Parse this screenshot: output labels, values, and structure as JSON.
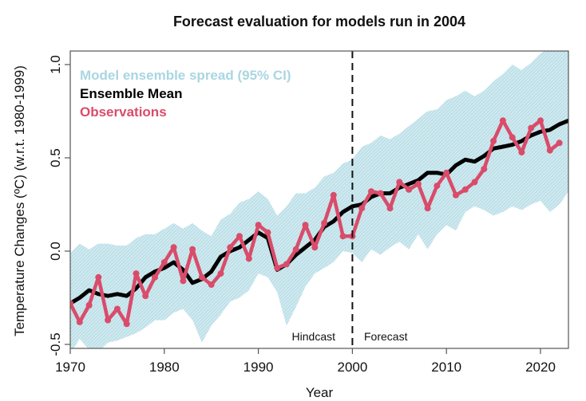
{
  "chart_data": {
    "type": "line",
    "title": "Forecast evaluation for models run in 2004",
    "xlabel": "Year",
    "ylabel": "Temperature Changes (ºC) (w.r.t. 1980-1999)",
    "xlim": [
      1970,
      2023
    ],
    "ylim": [
      -0.52,
      1.07
    ],
    "xticks": [
      1970,
      1980,
      1990,
      2000,
      2010,
      2020
    ],
    "xtick_labels": [
      "1970",
      "1980",
      "1990",
      "2000",
      "2010",
      "2020"
    ],
    "yticks": [
      -0.5,
      0.0,
      0.5,
      1.0
    ],
    "ytick_labels": [
      "-0.5",
      "0.0",
      "0.5",
      "1.0"
    ],
    "grid": false,
    "legend": {
      "placement": "top-left",
      "entries": [
        {
          "label": "Model ensemble spread (95% CI)",
          "color": "#a9d6e2"
        },
        {
          "label": "Ensemble Mean",
          "color": "#000000"
        },
        {
          "label": "Observations",
          "color": "#d94c6a"
        }
      ]
    },
    "annotations": {
      "divider_year": 2000,
      "left_label": "Hindcast",
      "right_label": "Forecast"
    },
    "colors": {
      "band_fill": "#cfe9ef",
      "band_hatch": "#9fcfdc",
      "mean": "#000000",
      "observations": "#d94c6a"
    },
    "band": {
      "name": "Model ensemble spread (95% CI)",
      "x": [
        1970,
        1971,
        1972,
        1973,
        1974,
        1975,
        1976,
        1977,
        1978,
        1979,
        1980,
        1981,
        1982,
        1983,
        1984,
        1985,
        1986,
        1987,
        1988,
        1989,
        1990,
        1991,
        1992,
        1993,
        1994,
        1995,
        1996,
        1997,
        1998,
        1999,
        2000,
        2001,
        2002,
        2003,
        2004,
        2005,
        2006,
        2007,
        2008,
        2009,
        2010,
        2011,
        2012,
        2013,
        2014,
        2015,
        2016,
        2017,
        2018,
        2019,
        2020,
        2021,
        2022,
        2023
      ],
      "upper": [
        -0.01,
        0.04,
        0.01,
        0.04,
        0.04,
        0.03,
        0.03,
        0.07,
        0.09,
        0.09,
        0.12,
        0.15,
        0.12,
        0.15,
        0.11,
        0.08,
        0.17,
        0.2,
        0.26,
        0.28,
        0.32,
        0.28,
        0.19,
        0.24,
        0.31,
        0.31,
        0.34,
        0.4,
        0.42,
        0.47,
        0.49,
        0.56,
        0.58,
        0.62,
        0.6,
        0.63,
        0.67,
        0.71,
        0.75,
        0.76,
        0.81,
        0.83,
        0.86,
        0.83,
        0.86,
        0.91,
        0.95,
        1.0,
        0.97,
        1.01,
        1.06,
        1.09,
        1.1,
        1.12
      ],
      "lower": [
        -0.55,
        -0.47,
        -0.53,
        -0.54,
        -0.49,
        -0.48,
        -0.46,
        -0.44,
        -0.41,
        -0.37,
        -0.37,
        -0.33,
        -0.31,
        -0.37,
        -0.49,
        -0.4,
        -0.34,
        -0.27,
        -0.25,
        -0.21,
        -0.12,
        -0.14,
        -0.22,
        -0.4,
        -0.3,
        -0.19,
        -0.12,
        -0.09,
        -0.06,
        0.0,
        -0.01,
        -0.06,
        0.01,
        -0.02,
        0.02,
        0.05,
        0.01,
        0.09,
        0.01,
        0.09,
        0.14,
        0.11,
        0.21,
        0.24,
        0.22,
        0.19,
        0.21,
        0.24,
        0.22,
        0.25,
        0.27,
        0.21,
        0.25,
        0.32
      ]
    },
    "series": [
      {
        "name": "Ensemble Mean",
        "x": [
          1970,
          1971,
          1972,
          1973,
          1974,
          1975,
          1976,
          1977,
          1978,
          1979,
          1980,
          1981,
          1982,
          1983,
          1984,
          1985,
          1986,
          1987,
          1988,
          1989,
          1990,
          1991,
          1992,
          1993,
          1994,
          1995,
          1996,
          1997,
          1998,
          1999,
          2000,
          2001,
          2002,
          2003,
          2004,
          2005,
          2006,
          2007,
          2008,
          2009,
          2010,
          2011,
          2012,
          2013,
          2014,
          2015,
          2016,
          2017,
          2018,
          2019,
          2020,
          2021,
          2022,
          2023
        ],
        "values": [
          -0.28,
          -0.25,
          -0.21,
          -0.23,
          -0.24,
          -0.23,
          -0.24,
          -0.2,
          -0.14,
          -0.11,
          -0.09,
          -0.06,
          -0.1,
          -0.17,
          -0.15,
          -0.11,
          -0.03,
          0.0,
          0.02,
          0.06,
          0.1,
          0.07,
          -0.1,
          -0.07,
          -0.02,
          0.02,
          0.06,
          0.13,
          0.16,
          0.21,
          0.24,
          0.25,
          0.29,
          0.31,
          0.31,
          0.34,
          0.36,
          0.38,
          0.42,
          0.42,
          0.41,
          0.46,
          0.49,
          0.48,
          0.51,
          0.55,
          0.56,
          0.57,
          0.59,
          0.62,
          0.64,
          0.65,
          0.68,
          0.7
        ]
      },
      {
        "name": "Observations",
        "x": [
          1970,
          1971,
          1972,
          1973,
          1974,
          1975,
          1976,
          1977,
          1978,
          1979,
          1980,
          1981,
          1982,
          1983,
          1984,
          1985,
          1986,
          1987,
          1988,
          1989,
          1990,
          1991,
          1992,
          1993,
          1994,
          1995,
          1996,
          1997,
          1998,
          1999,
          2000,
          2001,
          2002,
          2003,
          2004,
          2005,
          2006,
          2007,
          2008,
          2009,
          2010,
          2011,
          2012,
          2013,
          2014,
          2015,
          2016,
          2017,
          2018,
          2019,
          2020,
          2021,
          2022
        ],
        "values": [
          -0.28,
          -0.38,
          -0.29,
          -0.14,
          -0.37,
          -0.31,
          -0.39,
          -0.12,
          -0.24,
          -0.14,
          -0.06,
          0.02,
          -0.16,
          0.01,
          -0.14,
          -0.18,
          -0.12,
          0.02,
          0.08,
          -0.04,
          0.14,
          0.1,
          -0.09,
          -0.07,
          0.01,
          0.14,
          0.02,
          0.15,
          0.3,
          0.08,
          0.08,
          0.23,
          0.32,
          0.31,
          0.23,
          0.37,
          0.33,
          0.36,
          0.23,
          0.35,
          0.42,
          0.3,
          0.33,
          0.37,
          0.44,
          0.59,
          0.7,
          0.61,
          0.53,
          0.66,
          0.7,
          0.54,
          0.58
        ]
      }
    ]
  }
}
